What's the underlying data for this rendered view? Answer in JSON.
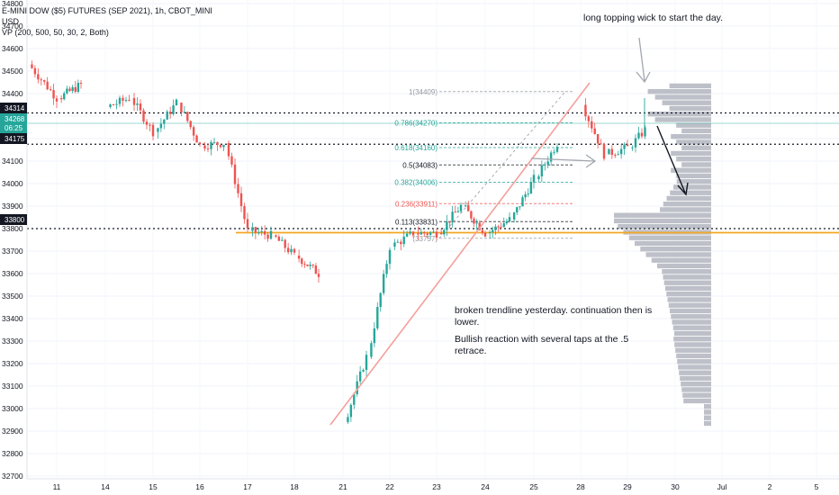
{
  "header": {
    "title": "E-MINI DOW ($5) FUTURES (SEP 2021), 1h, CBOT_MINI",
    "currency": "USD",
    "indicator": "VP (200, 500, 50, 30, 2, Both)"
  },
  "annotations": {
    "wick_note": "long topping wick to start the day.",
    "note_line1": "broken trendline yesterday. continuation then is lower.",
    "note_line2": "Bullish reaction with several taps at the .5 retrace."
  },
  "price_tags": {
    "upper_line": "34314",
    "current_price": "34268",
    "countdown": "06:25",
    "mid_line": "34175",
    "support_line": "33800"
  },
  "colors": {
    "up": "#26a69a",
    "down": "#ef5350",
    "support": "#f5a623",
    "trendline": "#f4a09a",
    "volume_profile": "#b2b5be",
    "current_price_tag": "#26a69a",
    "dark_tag": "#131722"
  },
  "chart_data": {
    "type": "candlestick",
    "symbol": "E-MINI DOW ($5) FUTURES (SEP 2021)",
    "timeframe": "1h",
    "ylim": [
      32600,
      34800
    ],
    "y_ticks": [
      32700,
      32800,
      32900,
      33000,
      33100,
      33200,
      33300,
      33400,
      33500,
      33600,
      33700,
      33800,
      33900,
      34000,
      34100,
      34200,
      34300,
      34400,
      34500,
      34600,
      34700,
      34800
    ],
    "x_ticks": [
      "11",
      "14",
      "15",
      "16",
      "17",
      "18",
      "21",
      "22",
      "23",
      "24",
      "25",
      "28",
      "29",
      "30",
      "Jul",
      "2",
      "5"
    ],
    "path_points": [
      [
        "10",
        34530
      ],
      [
        "11",
        34380
      ],
      [
        "11.5",
        34440
      ],
      [
        "12",
        34390
      ],
      [
        "14",
        34340
      ],
      [
        "14.5",
        34380
      ],
      [
        "15",
        34230
      ],
      [
        "15.5",
        34360
      ],
      [
        "16",
        34170
      ],
      [
        "16.5",
        34180
      ],
      [
        "17",
        33790
      ],
      [
        "17.5",
        33770
      ],
      [
        "18",
        33680
      ],
      [
        "18.5",
        33600
      ],
      [
        "19",
        33380
      ],
      [
        "21",
        32940
      ],
      [
        "21.5",
        33230
      ],
      [
        "22",
        33720
      ],
      [
        "22.5",
        33780
      ],
      [
        "23",
        33780
      ],
      [
        "23.5",
        33900
      ],
      [
        "24",
        33780
      ],
      [
        "24.5",
        33840
      ],
      [
        "25",
        34020
      ],
      [
        "25.5",
        34180
      ],
      [
        "26",
        34370
      ],
      [
        "28",
        34350
      ],
      [
        "28.5",
        34130
      ],
      [
        "29",
        34160
      ],
      [
        "29.5",
        34270
      ]
    ],
    "horizontal_lines": [
      {
        "price": 34314,
        "style": "dotted"
      },
      {
        "price": 34175,
        "style": "dotted"
      },
      {
        "price": 33800,
        "style": "dotted"
      },
      {
        "price": 33790,
        "style": "support"
      }
    ],
    "fibonacci": [
      {
        "label": "1(34409)",
        "price": 34409
      },
      {
        "label": "0.786(34270)",
        "price": 34270
      },
      {
        "label": "0.618(34160)",
        "price": 34160
      },
      {
        "label": "0.5(34083)",
        "price": 34083
      },
      {
        "label": "0.382(34006)",
        "price": 34006
      },
      {
        "label": "0.236(33911)",
        "price": 33911
      },
      {
        "label": "0.113(33831)",
        "price": 33831
      },
      {
        "label": "(33757)",
        "price": 33757
      }
    ],
    "volume_profile": "right-side histogram, high-volume node near 33790"
  }
}
